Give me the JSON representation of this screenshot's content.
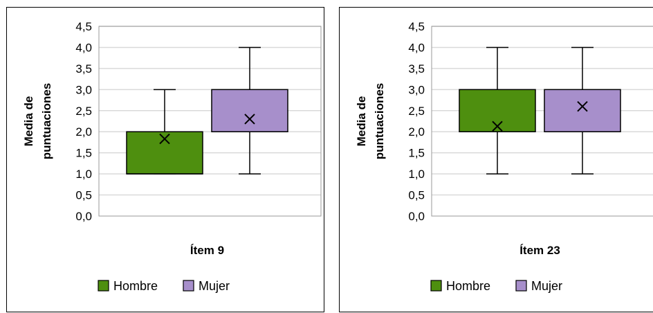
{
  "chart_data": [
    {
      "type": "box",
      "xlabel": "Ítem 9",
      "ylabel": [
        "Media de",
        "puntuaciones"
      ],
      "ylim": [
        0,
        4.5
      ],
      "yticks": [
        "0,0",
        "0,5",
        "1,0",
        "1,5",
        "2,0",
        "2,5",
        "3,0",
        "3,5",
        "4,0",
        "4,5"
      ],
      "grid": true,
      "legend_position": "bottom",
      "series": [
        {
          "name": "Hombre",
          "color": "#4E8F0F",
          "min": 1.0,
          "q1": 1.0,
          "median": 1.0,
          "q3": 2.0,
          "max": 3.0,
          "mean": 1.83
        },
        {
          "name": "Mujer",
          "color": "#A78FCB",
          "min": 1.0,
          "q1": 2.0,
          "median": 2.0,
          "q3": 3.0,
          "max": 4.0,
          "mean": 2.3
        }
      ]
    },
    {
      "type": "box",
      "xlabel": "Ítem 23",
      "ylabel": [
        "Media de",
        "puntuaciones"
      ],
      "ylim": [
        0,
        4.5
      ],
      "yticks": [
        "0,0",
        "0,5",
        "1,0",
        "1,5",
        "2,0",
        "2,5",
        "3,0",
        "3,5",
        "4,0",
        "4,5"
      ],
      "grid": true,
      "legend_position": "bottom",
      "series": [
        {
          "name": "Hombre",
          "color": "#4E8F0F",
          "min": 1.0,
          "q1": 2.0,
          "median": 2.0,
          "q3": 3.0,
          "max": 4.0,
          "mean": 2.13
        },
        {
          "name": "Mujer",
          "color": "#A78FCB",
          "min": 1.0,
          "q1": 2.0,
          "median": 2.0,
          "q3": 3.0,
          "max": 4.0,
          "mean": 2.6
        }
      ]
    }
  ]
}
